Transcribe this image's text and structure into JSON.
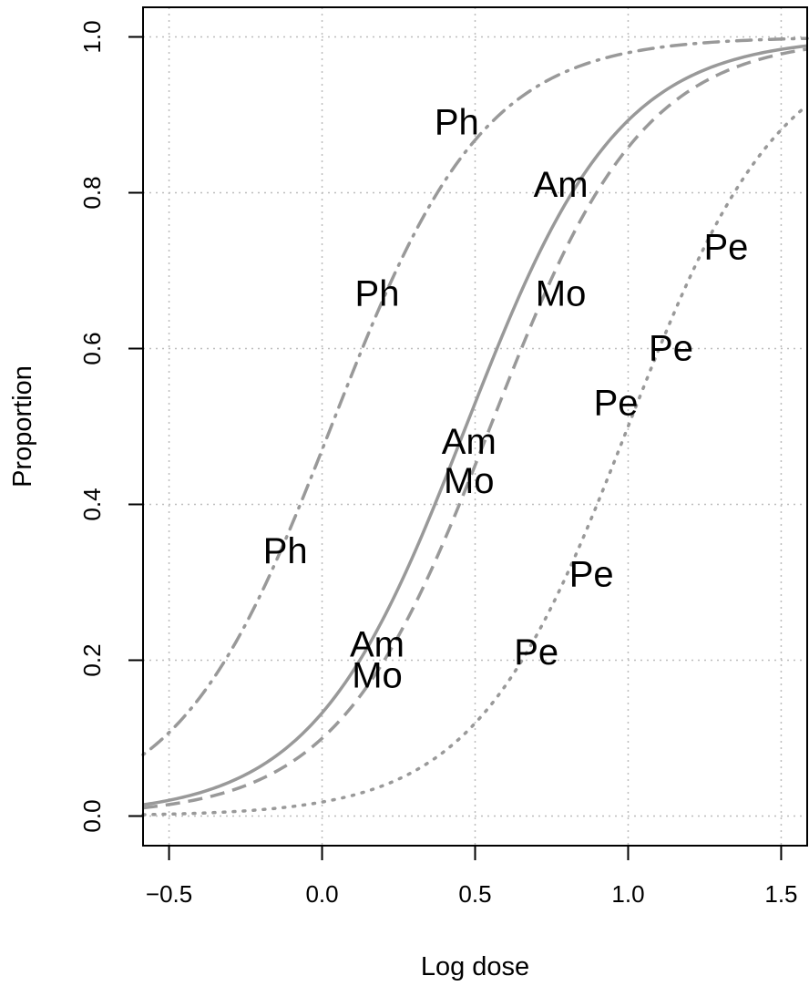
{
  "chart_data": {
    "type": "line",
    "title": "",
    "xlabel": "Log dose",
    "ylabel": "Proportion",
    "xlim": [
      -0.585,
      1.585
    ],
    "ylim": [
      -0.038,
      1.038
    ],
    "grid": true,
    "x_ticks": [
      -0.5,
      0.0,
      0.5,
      1.0,
      1.5
    ],
    "x_tick_labels": [
      "−0.5",
      "0.0",
      "0.5",
      "1.0",
      "1.5"
    ],
    "y_ticks": [
      0.0,
      0.2,
      0.4,
      0.6,
      0.8,
      1.0
    ],
    "y_tick_labels": [
      "0.0",
      "0.2",
      "0.4",
      "0.6",
      "0.8",
      "1.0"
    ],
    "series": [
      {
        "name": "Ph",
        "line_style": "dotdash",
        "fitted_logistic": {
          "midpoint": 0.03,
          "slope": 4.0
        },
        "points": [
          {
            "x": -0.12,
            "y": 0.34
          },
          {
            "x": 0.18,
            "y": 0.67
          },
          {
            "x": 0.44,
            "y": 0.89
          }
        ]
      },
      {
        "name": "Am",
        "line_style": "solid",
        "fitted_logistic": {
          "midpoint": 0.47,
          "slope": 4.0
        },
        "points": [
          {
            "x": 0.18,
            "y": 0.22
          },
          {
            "x": 0.48,
            "y": 0.48
          },
          {
            "x": 0.78,
            "y": 0.81
          }
        ]
      },
      {
        "name": "Mo",
        "line_style": "dashed",
        "fitted_logistic": {
          "midpoint": 0.55,
          "slope": 4.0
        },
        "points": [
          {
            "x": 0.18,
            "y": 0.18
          },
          {
            "x": 0.48,
            "y": 0.43
          },
          {
            "x": 0.78,
            "y": 0.67
          }
        ]
      },
      {
        "name": "Pe",
        "line_style": "dotted",
        "fitted_logistic": {
          "midpoint": 1.0,
          "slope": 4.0
        },
        "points": [
          {
            "x": 0.7,
            "y": 0.21
          },
          {
            "x": 0.88,
            "y": 0.31
          },
          {
            "x": 0.96,
            "y": 0.53
          },
          {
            "x": 1.14,
            "y": 0.6
          },
          {
            "x": 1.32,
            "y": 0.73
          }
        ]
      }
    ]
  }
}
